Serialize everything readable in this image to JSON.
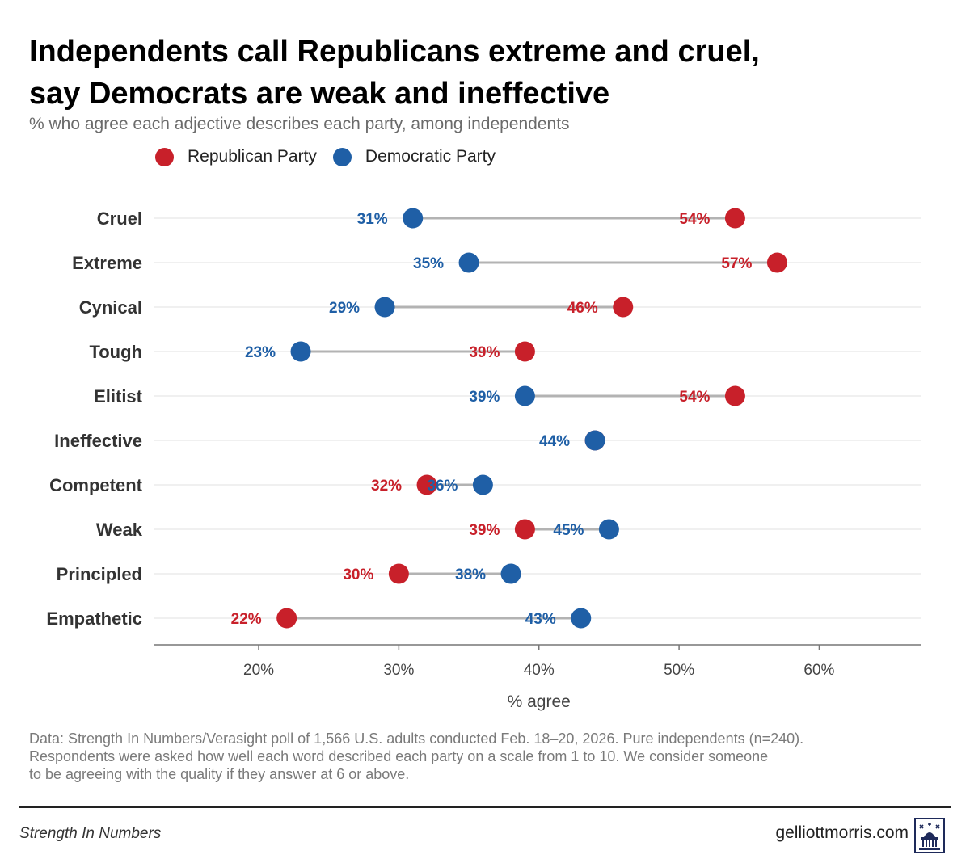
{
  "header": {
    "title_line1": "Independents call Republicans extreme and cruel,",
    "title_line2": "say Democrats are weak and ineffective",
    "subtitle": "% who agree each adjective describes each party, among independents"
  },
  "legend": [
    {
      "label": "Republican Party",
      "color": "#c8202a"
    },
    {
      "label": "Democratic Party",
      "color": "#1f5fa6"
    }
  ],
  "chart_data": {
    "type": "dumbbell",
    "xlabel": "% agree",
    "ylabel": "",
    "xlim": [
      12.5,
      67.3
    ],
    "xticks": [
      20,
      30,
      40,
      50,
      60
    ],
    "xtick_labels": [
      "20%",
      "30%",
      "40%",
      "50%",
      "60%"
    ],
    "grid": "horizontal",
    "legend_placement": "top-left",
    "categories": [
      "Cruel",
      "Extreme",
      "Cynical",
      "Tough",
      "Elitist",
      "Ineffective",
      "Competent",
      "Weak",
      "Principled",
      "Empathetic"
    ],
    "series": [
      {
        "name": "Republican Party",
        "color": "#c8202a",
        "values": [
          54,
          57,
          46,
          39,
          54,
          44,
          32,
          39,
          30,
          22
        ]
      },
      {
        "name": "Democratic Party",
        "color": "#1f5fa6",
        "values": [
          31,
          35,
          29,
          23,
          39,
          44,
          36,
          45,
          38,
          43
        ]
      }
    ],
    "shown_labels": {
      "Republican Party": [
        true,
        true,
        true,
        true,
        true,
        false,
        true,
        true,
        true,
        true
      ],
      "Democratic Party": [
        true,
        true,
        true,
        true,
        true,
        true,
        true,
        true,
        true,
        true
      ]
    }
  },
  "footer": {
    "note_line1": "Data: Strength In Numbers/Verasight poll of 1,566 U.S. adults conducted Feb. 18–20, 2026. Pure independents (n=240).",
    "note_line2": "Respondents were asked how well each word described each party on a scale from 1 to 10. We consider someone",
    "note_line3": "to be agreeing with the quality if they answer at 6 or above.",
    "brand": "Strength In Numbers",
    "site": "gelliottmorris.com"
  }
}
